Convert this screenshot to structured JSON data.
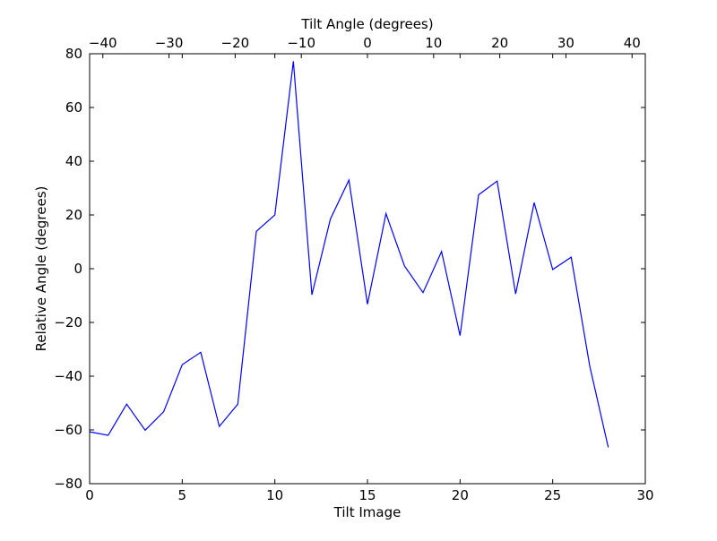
{
  "chart_data": {
    "type": "line",
    "xlabel": "Tilt Image",
    "ylabel": "Relative Angle (degrees)",
    "top_xlabel": "Tilt Angle (degrees)",
    "xlim": [
      0,
      30
    ],
    "ylim": [
      -80,
      80
    ],
    "top_xlim": [
      -42,
      42
    ],
    "x_ticks": [
      0,
      5,
      10,
      15,
      20,
      25,
      30
    ],
    "y_ticks": [
      -80,
      -60,
      -40,
      -20,
      0,
      20,
      40,
      60,
      80
    ],
    "top_ticks": [
      -40,
      -30,
      -20,
      -10,
      0,
      10,
      20,
      30,
      40
    ],
    "grid": false,
    "series": [
      {
        "color": "#0000ff",
        "x": [
          0,
          1,
          2,
          3,
          4,
          5,
          6,
          7,
          8,
          9,
          10,
          11,
          12,
          13,
          14,
          15,
          16,
          17,
          18,
          19,
          20,
          21,
          22,
          23,
          24,
          25,
          26,
          27,
          28
        ],
        "values": [
          -60.7,
          -62.0,
          -50.4,
          -60.1,
          -53.2,
          -35.7,
          -31.1,
          -58.7,
          -50.4,
          13.9,
          20.0,
          77.2,
          -9.7,
          18.5,
          33.0,
          -13.2,
          20.5,
          1.0,
          -8.9,
          6.4,
          -24.9,
          27.5,
          32.6,
          -9.4,
          24.6,
          -0.3,
          4.3,
          -36.2,
          -66.5
        ]
      }
    ]
  }
}
